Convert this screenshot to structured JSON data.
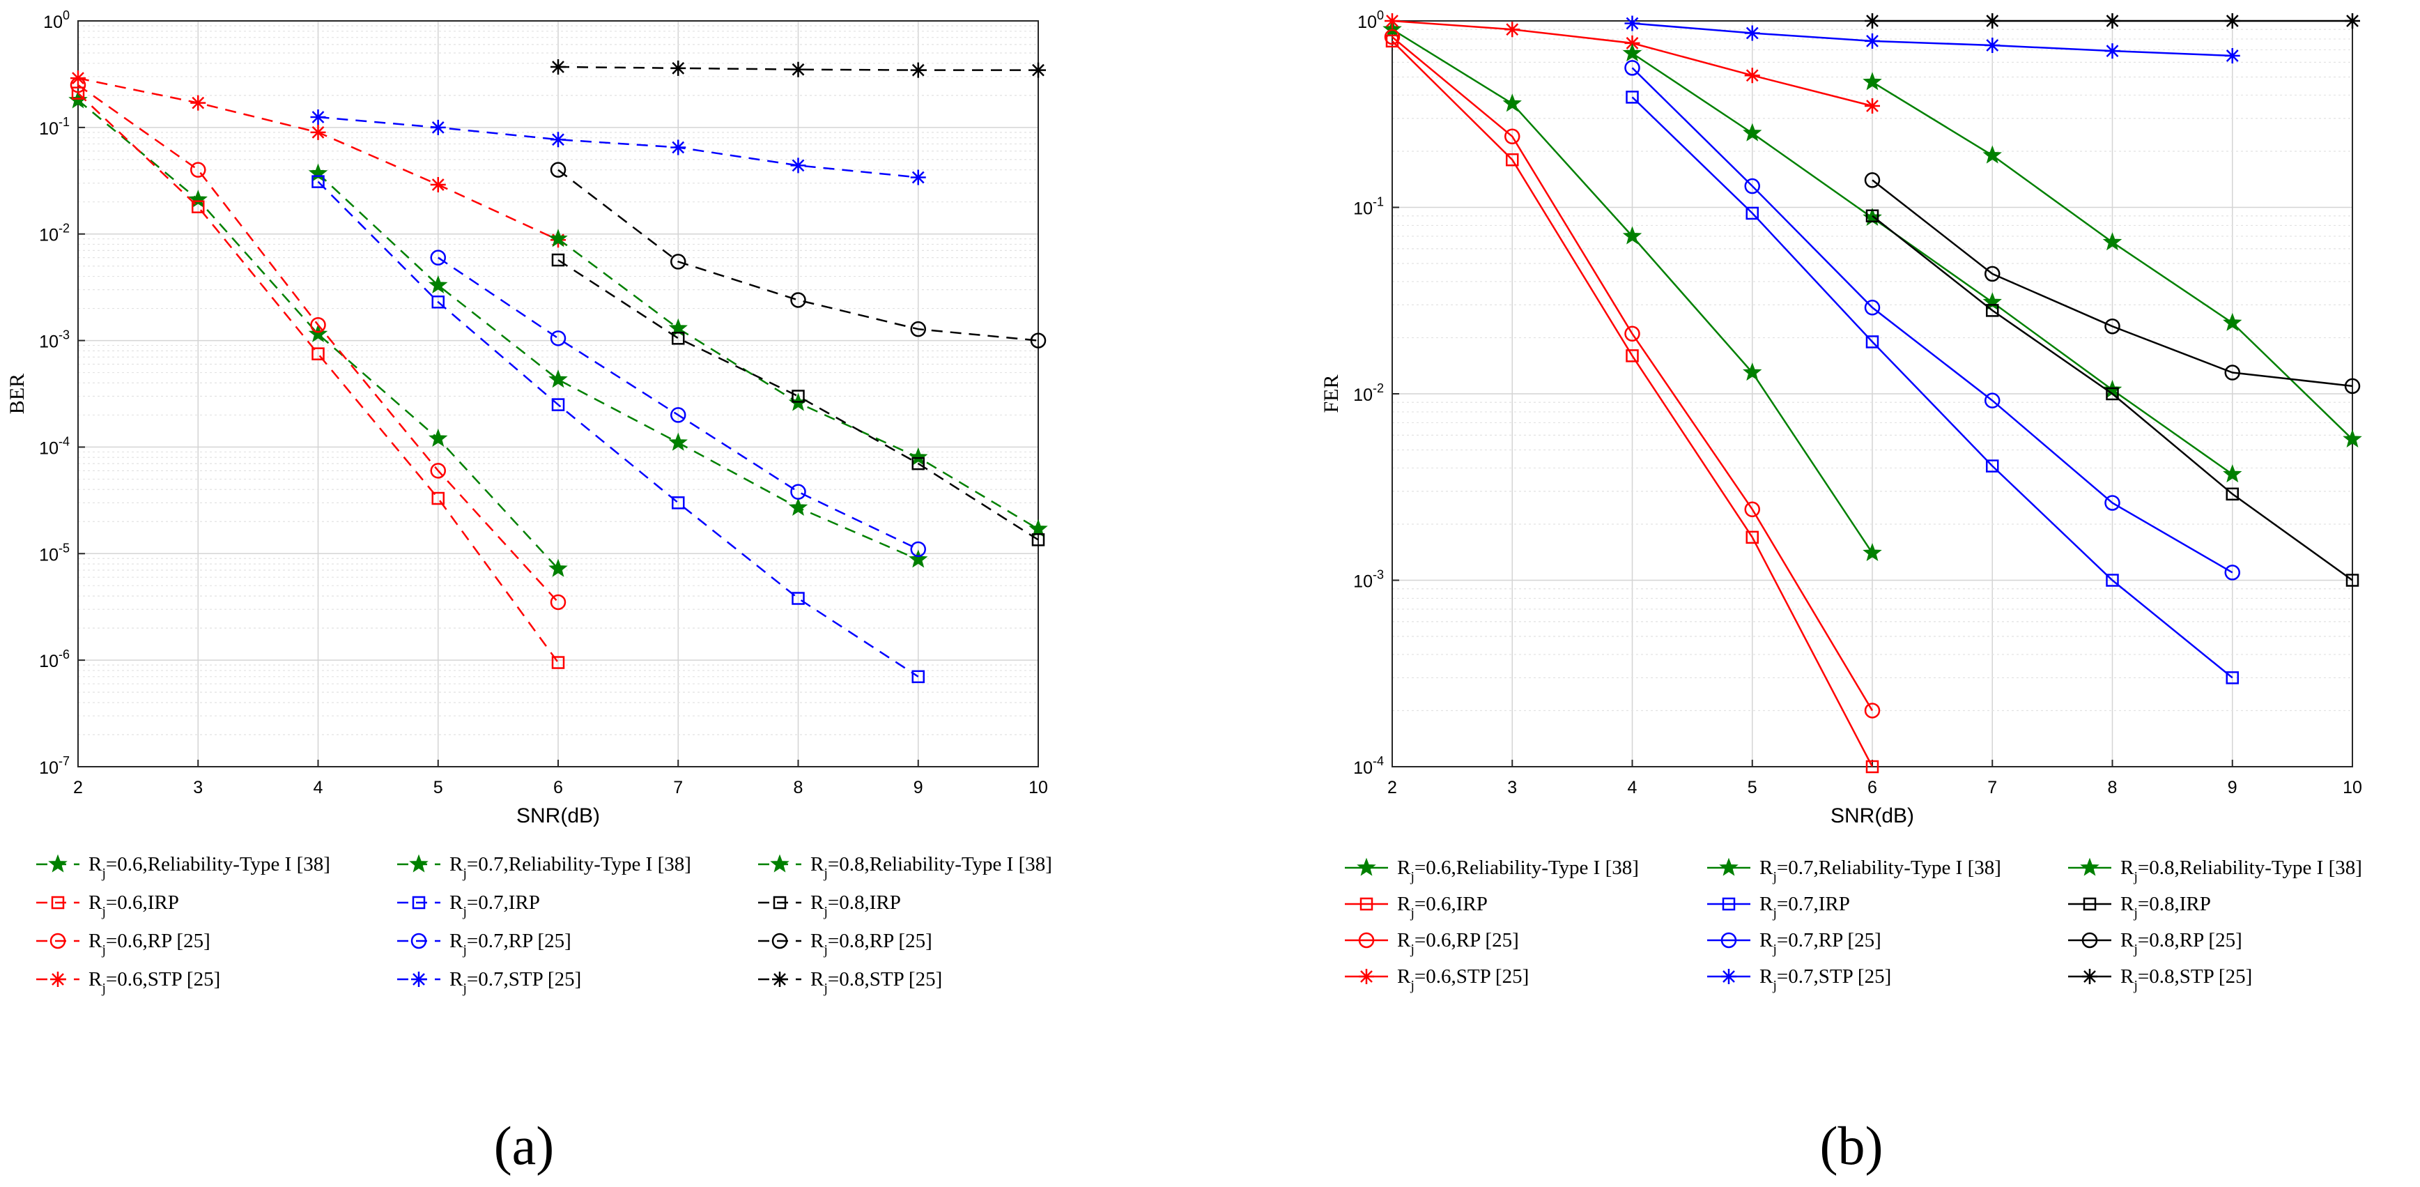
{
  "caption_a": "(a)",
  "caption_b": "(b)",
  "chart_data": [
    {
      "type": "line",
      "panel": "a",
      "line_style": "dashed",
      "xlabel": "SNR(dB)",
      "ylabel": "BER",
      "xlim": [
        2,
        10
      ],
      "ylim_log10": [
        -7,
        0
      ],
      "yscale": "log",
      "grid": true,
      "xticks": [
        "2",
        "3",
        "4",
        "5",
        "6",
        "7",
        "8",
        "9",
        "10"
      ],
      "yticks": [
        {
          "base": "10",
          "exp": "0"
        },
        {
          "base": "10",
          "exp": "-1"
        },
        {
          "base": "10",
          "exp": "-2"
        },
        {
          "base": "10",
          "exp": "-3"
        },
        {
          "base": "10",
          "exp": "-4"
        },
        {
          "base": "10",
          "exp": "-5"
        },
        {
          "base": "10",
          "exp": "-6"
        },
        {
          "base": "10",
          "exp": "-7"
        }
      ],
      "series": [
        {
          "sub": "j",
          "text": "=0.6,Reliability-Type I [38]",
          "color": "#008000",
          "marker": "star",
          "x": [
            2,
            3,
            4,
            5,
            6
          ],
          "y": [
            0.18,
            0.021,
            0.00115,
            0.00012,
            7.2e-06
          ]
        },
        {
          "sub": "j",
          "text": "=0.6,IRP",
          "color": "#ff0000",
          "marker": "square",
          "x": [
            2,
            3,
            4,
            5,
            6
          ],
          "y": [
            0.21,
            0.018,
            0.00075,
            3.3e-05,
            9.5e-07
          ]
        },
        {
          "sub": "j",
          "text": "=0.6,RP [25]",
          "color": "#ff0000",
          "marker": "circle",
          "x": [
            2,
            3,
            4,
            5,
            6
          ],
          "y": [
            0.25,
            0.04,
            0.0014,
            6e-05,
            3.5e-06
          ]
        },
        {
          "sub": "j",
          "text": "=0.6,STP [25]",
          "color": "#ff0000",
          "marker": "asterisk",
          "x": [
            2,
            3,
            4,
            5,
            6
          ],
          "y": [
            0.29,
            0.17,
            0.09,
            0.029,
            0.0088
          ]
        },
        {
          "sub": "j",
          "text": "=0.7,Reliability-Type I [38]",
          "color": "#008000",
          "marker": "star",
          "x": [
            4,
            5,
            6,
            7,
            8,
            9
          ],
          "y": [
            0.037,
            0.0033,
            0.00043,
            0.00011,
            2.7e-05,
            8.8e-06
          ]
        },
        {
          "sub": "j",
          "text": "=0.7,IRP",
          "color": "#0000ff",
          "marker": "square",
          "x": [
            4,
            5,
            6,
            7,
            8,
            9
          ],
          "y": [
            0.031,
            0.0023,
            0.00025,
            3e-05,
            3.8e-06,
            7e-07
          ]
        },
        {
          "sub": "j",
          "text": "=0.7,RP [25]",
          "color": "#0000ff",
          "marker": "circle",
          "x": [
            5,
            6,
            7,
            8,
            9
          ],
          "y": [
            0.006,
            0.00105,
            0.0002,
            3.8e-05,
            1.1e-05
          ]
        },
        {
          "sub": "j",
          "text": "=0.7,STP [25]",
          "color": "#0000ff",
          "marker": "asterisk",
          "x": [
            4,
            5,
            6,
            7,
            8,
            9
          ],
          "y": [
            0.125,
            0.1,
            0.077,
            0.065,
            0.044,
            0.034
          ]
        },
        {
          "sub": "j",
          "text": "=0.8,Reliability-Type I [38]",
          "color": "#008000",
          "marker": "star",
          "x": [
            6,
            7,
            8,
            9,
            10
          ],
          "y": [
            0.009,
            0.0013,
            0.00026,
            8e-05,
            1.7e-05
          ]
        },
        {
          "sub": "j",
          "text": "=0.8,IRP",
          "color": "#000000",
          "marker": "square",
          "x": [
            6,
            7,
            8,
            9,
            10
          ],
          "y": [
            0.0057,
            0.00105,
            0.0003,
            7e-05,
            1.35e-05
          ]
        },
        {
          "sub": "j",
          "text": "=0.8,RP [25]",
          "color": "#000000",
          "marker": "circle",
          "x": [
            6,
            7,
            8,
            9,
            10
          ],
          "y": [
            0.04,
            0.0055,
            0.0024,
            0.00128,
            0.001
          ]
        },
        {
          "sub": "j",
          "text": "=0.8,STP [25]",
          "color": "#000000",
          "marker": "asterisk",
          "x": [
            6,
            7,
            8,
            9,
            10
          ],
          "y": [
            0.37,
            0.36,
            0.35,
            0.345,
            0.345
          ]
        }
      ]
    },
    {
      "type": "line",
      "panel": "b",
      "line_style": "solid",
      "xlabel": "SNR(dB)",
      "ylabel": "FER",
      "xlim": [
        2,
        10
      ],
      "ylim_log10": [
        -4,
        0
      ],
      "yscale": "log",
      "grid": true,
      "xticks": [
        "2",
        "3",
        "4",
        "5",
        "6",
        "7",
        "8",
        "9",
        "10"
      ],
      "yticks": [
        {
          "base": "10",
          "exp": "0"
        },
        {
          "base": "10",
          "exp": "-1"
        },
        {
          "base": "10",
          "exp": "-2"
        },
        {
          "base": "10",
          "exp": "-3"
        },
        {
          "base": "10",
          "exp": "-4"
        }
      ],
      "series": [
        {
          "sub": "j",
          "text": "=0.6,Reliability-Type I [38]",
          "color": "#008000",
          "marker": "star",
          "x": [
            2,
            3,
            4,
            5,
            6
          ],
          "y": [
            0.9,
            0.36,
            0.07,
            0.013,
            0.0014
          ]
        },
        {
          "sub": "j",
          "text": "=0.6,IRP",
          "color": "#ff0000",
          "marker": "square",
          "x": [
            2,
            3,
            4,
            5,
            6
          ],
          "y": [
            0.78,
            0.18,
            0.016,
            0.0017,
            0.0001
          ]
        },
        {
          "sub": "j",
          "text": "=0.6,RP [25]",
          "color": "#ff0000",
          "marker": "circle",
          "x": [
            2,
            3,
            4,
            5,
            6
          ],
          "y": [
            0.82,
            0.24,
            0.021,
            0.0024,
            0.0002
          ]
        },
        {
          "sub": "j",
          "text": "=0.6,STP [25]",
          "color": "#ff0000",
          "marker": "asterisk",
          "x": [
            2,
            3,
            4,
            5,
            6
          ],
          "y": [
            1.0,
            0.9,
            0.76,
            0.51,
            0.35
          ]
        },
        {
          "sub": "j",
          "text": "=0.7,Reliability-Type I [38]",
          "color": "#008000",
          "marker": "star",
          "x": [
            4,
            5,
            6,
            7,
            8,
            9
          ],
          "y": [
            0.67,
            0.25,
            0.088,
            0.031,
            0.0105,
            0.0037
          ]
        },
        {
          "sub": "j",
          "text": "=0.7,IRP",
          "color": "#0000ff",
          "marker": "square",
          "x": [
            4,
            5,
            6,
            7,
            8,
            9
          ],
          "y": [
            0.39,
            0.093,
            0.019,
            0.0041,
            0.001,
            0.0003
          ]
        },
        {
          "sub": "j",
          "text": "=0.7,RP [25]",
          "color": "#0000ff",
          "marker": "circle",
          "x": [
            4,
            5,
            6,
            7,
            8,
            9
          ],
          "y": [
            0.56,
            0.13,
            0.029,
            0.0092,
            0.0026,
            0.0011
          ]
        },
        {
          "sub": "j",
          "text": "=0.7,STP [25]",
          "color": "#0000ff",
          "marker": "asterisk",
          "x": [
            4,
            5,
            6,
            7,
            8,
            9
          ],
          "y": [
            0.97,
            0.86,
            0.78,
            0.74,
            0.69,
            0.65
          ]
        },
        {
          "sub": "j",
          "text": "=0.8,Reliability-Type I [38]",
          "color": "#008000",
          "marker": "star",
          "x": [
            6,
            7,
            8,
            9,
            10
          ],
          "y": [
            0.47,
            0.19,
            0.065,
            0.024,
            0.0057
          ]
        },
        {
          "sub": "j",
          "text": "=0.8,IRP",
          "color": "#000000",
          "marker": "square",
          "x": [
            6,
            7,
            8,
            9,
            10
          ],
          "y": [
            0.09,
            0.028,
            0.01,
            0.0029,
            0.001
          ]
        },
        {
          "sub": "j",
          "text": "=0.8,RP [25]",
          "color": "#000000",
          "marker": "circle",
          "x": [
            6,
            7,
            8,
            9,
            10
          ],
          "y": [
            0.14,
            0.044,
            0.023,
            0.013,
            0.011
          ]
        },
        {
          "sub": "j",
          "text": "=0.8,STP [25]",
          "color": "#000000",
          "marker": "asterisk",
          "x": [
            6,
            7,
            8,
            9,
            10
          ],
          "y": [
            1.0,
            1.0,
            1.0,
            1.0,
            1.0
          ]
        }
      ]
    }
  ]
}
